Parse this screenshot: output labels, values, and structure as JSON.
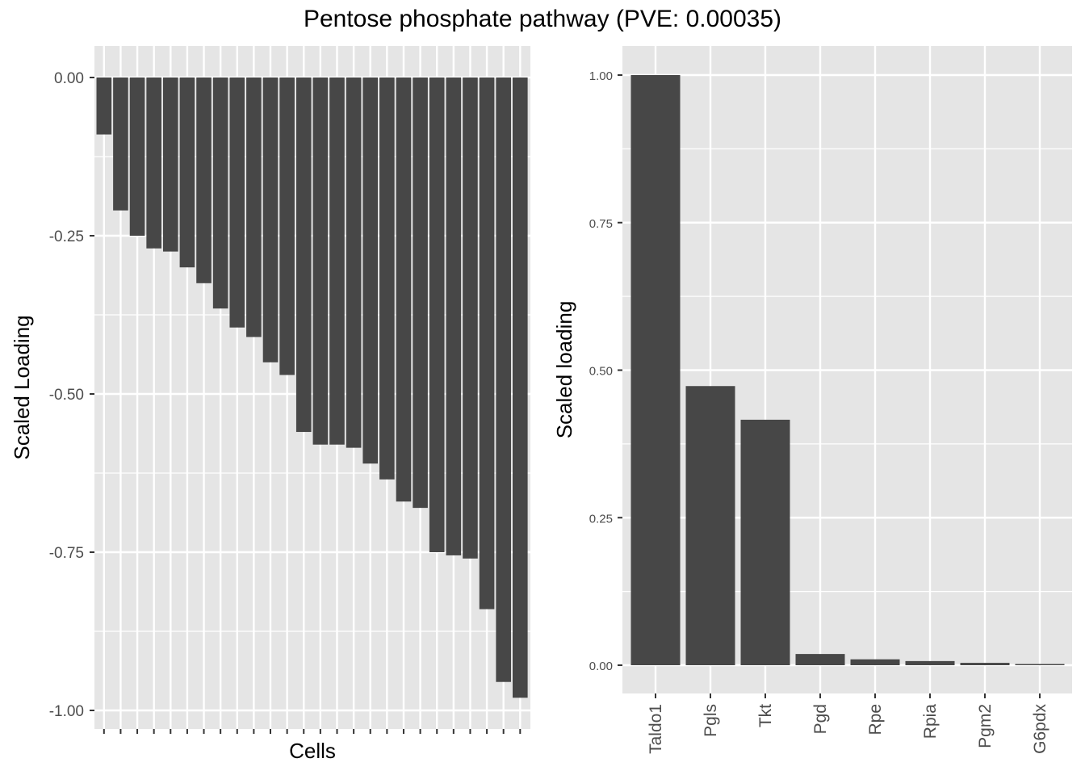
{
  "title": "Pentose phosphate pathway (PVE: 0.00035)",
  "chart_data": [
    {
      "type": "bar",
      "xlabel": "Cells",
      "ylabel": "Scaled Loading",
      "ylim": [
        -1.0,
        0.0
      ],
      "yticks": [
        "0.00",
        "-0.25",
        "-0.50",
        "-0.75",
        "-1.00"
      ],
      "grid": true,
      "bar_color": "#474747",
      "values": [
        -0.09,
        -0.21,
        -0.25,
        -0.27,
        -0.275,
        -0.3,
        -0.325,
        -0.365,
        -0.395,
        -0.41,
        -0.45,
        -0.47,
        -0.56,
        -0.58,
        -0.58,
        -0.585,
        -0.61,
        -0.635,
        -0.67,
        -0.68,
        -0.75,
        -0.755,
        -0.76,
        -0.84,
        -0.955,
        -0.98
      ]
    },
    {
      "type": "bar",
      "xlabel": "",
      "ylabel": "Scaled loading",
      "ylim": [
        0.0,
        1.0
      ],
      "yticks": [
        "0.00",
        "0.25",
        "0.50",
        "0.75",
        "1.00"
      ],
      "grid": true,
      "bar_color": "#474747",
      "categories": [
        "Taldo1",
        "Pgls",
        "Tkt",
        "Pgd",
        "Rpe",
        "Rpia",
        "Pgm2",
        "G6pdx"
      ],
      "values": [
        1.0,
        0.473,
        0.416,
        0.019,
        0.01,
        0.007,
        0.004,
        0.002
      ]
    }
  ],
  "colors": {
    "panel_background": "#e5e5e5",
    "grid": "#ffffff",
    "bar": "#474747"
  }
}
